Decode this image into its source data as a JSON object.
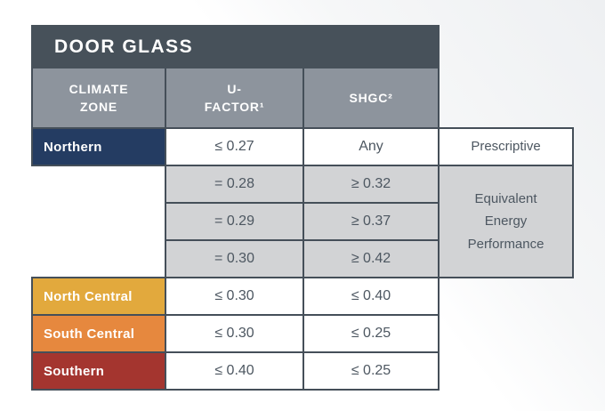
{
  "colors": {
    "title_bar": "#47515A",
    "header_bg": "#8D949D",
    "border": "#454F59",
    "cell_gray": "#D2D3D5",
    "value_text": "#4D5761",
    "zone_northern": "#243C62",
    "zone_north_central": "#E2A93D",
    "zone_south_central": "#E6883E",
    "zone_southern": "#A4352F"
  },
  "table": {
    "title": "DOOR GLASS",
    "headers": [
      "CLIMATE\nZONE",
      "U-\nFACTOR¹",
      "SHGC²"
    ],
    "rows": [
      {
        "zone": "Northern",
        "zone_color": "#243C62",
        "u_factor": "≤ 0.27",
        "shgc": "Any",
        "path": "Prescriptive"
      },
      {
        "zone": "",
        "zone_color": "",
        "u_factor": "= 0.28",
        "shgc": "≥ 0.32",
        "path": "Equivalent Energy Performance"
      },
      {
        "zone": "",
        "zone_color": "",
        "u_factor": "= 0.29",
        "shgc": "≥ 0.37",
        "path": ""
      },
      {
        "zone": "",
        "zone_color": "",
        "u_factor": "= 0.30",
        "shgc": "≥ 0.42",
        "path": ""
      },
      {
        "zone": "North Central",
        "zone_color": "#E2A93D",
        "u_factor": "≤ 0.30",
        "shgc": "≤ 0.40",
        "path": ""
      },
      {
        "zone": "South Central",
        "zone_color": "#E6883E",
        "u_factor": "≤ 0.30",
        "shgc": "≤ 0.25",
        "path": ""
      },
      {
        "zone": "Southern",
        "zone_color": "#A4352F",
        "u_factor": "≤ 0.40",
        "shgc": "≤ 0.25",
        "path": ""
      }
    ]
  }
}
